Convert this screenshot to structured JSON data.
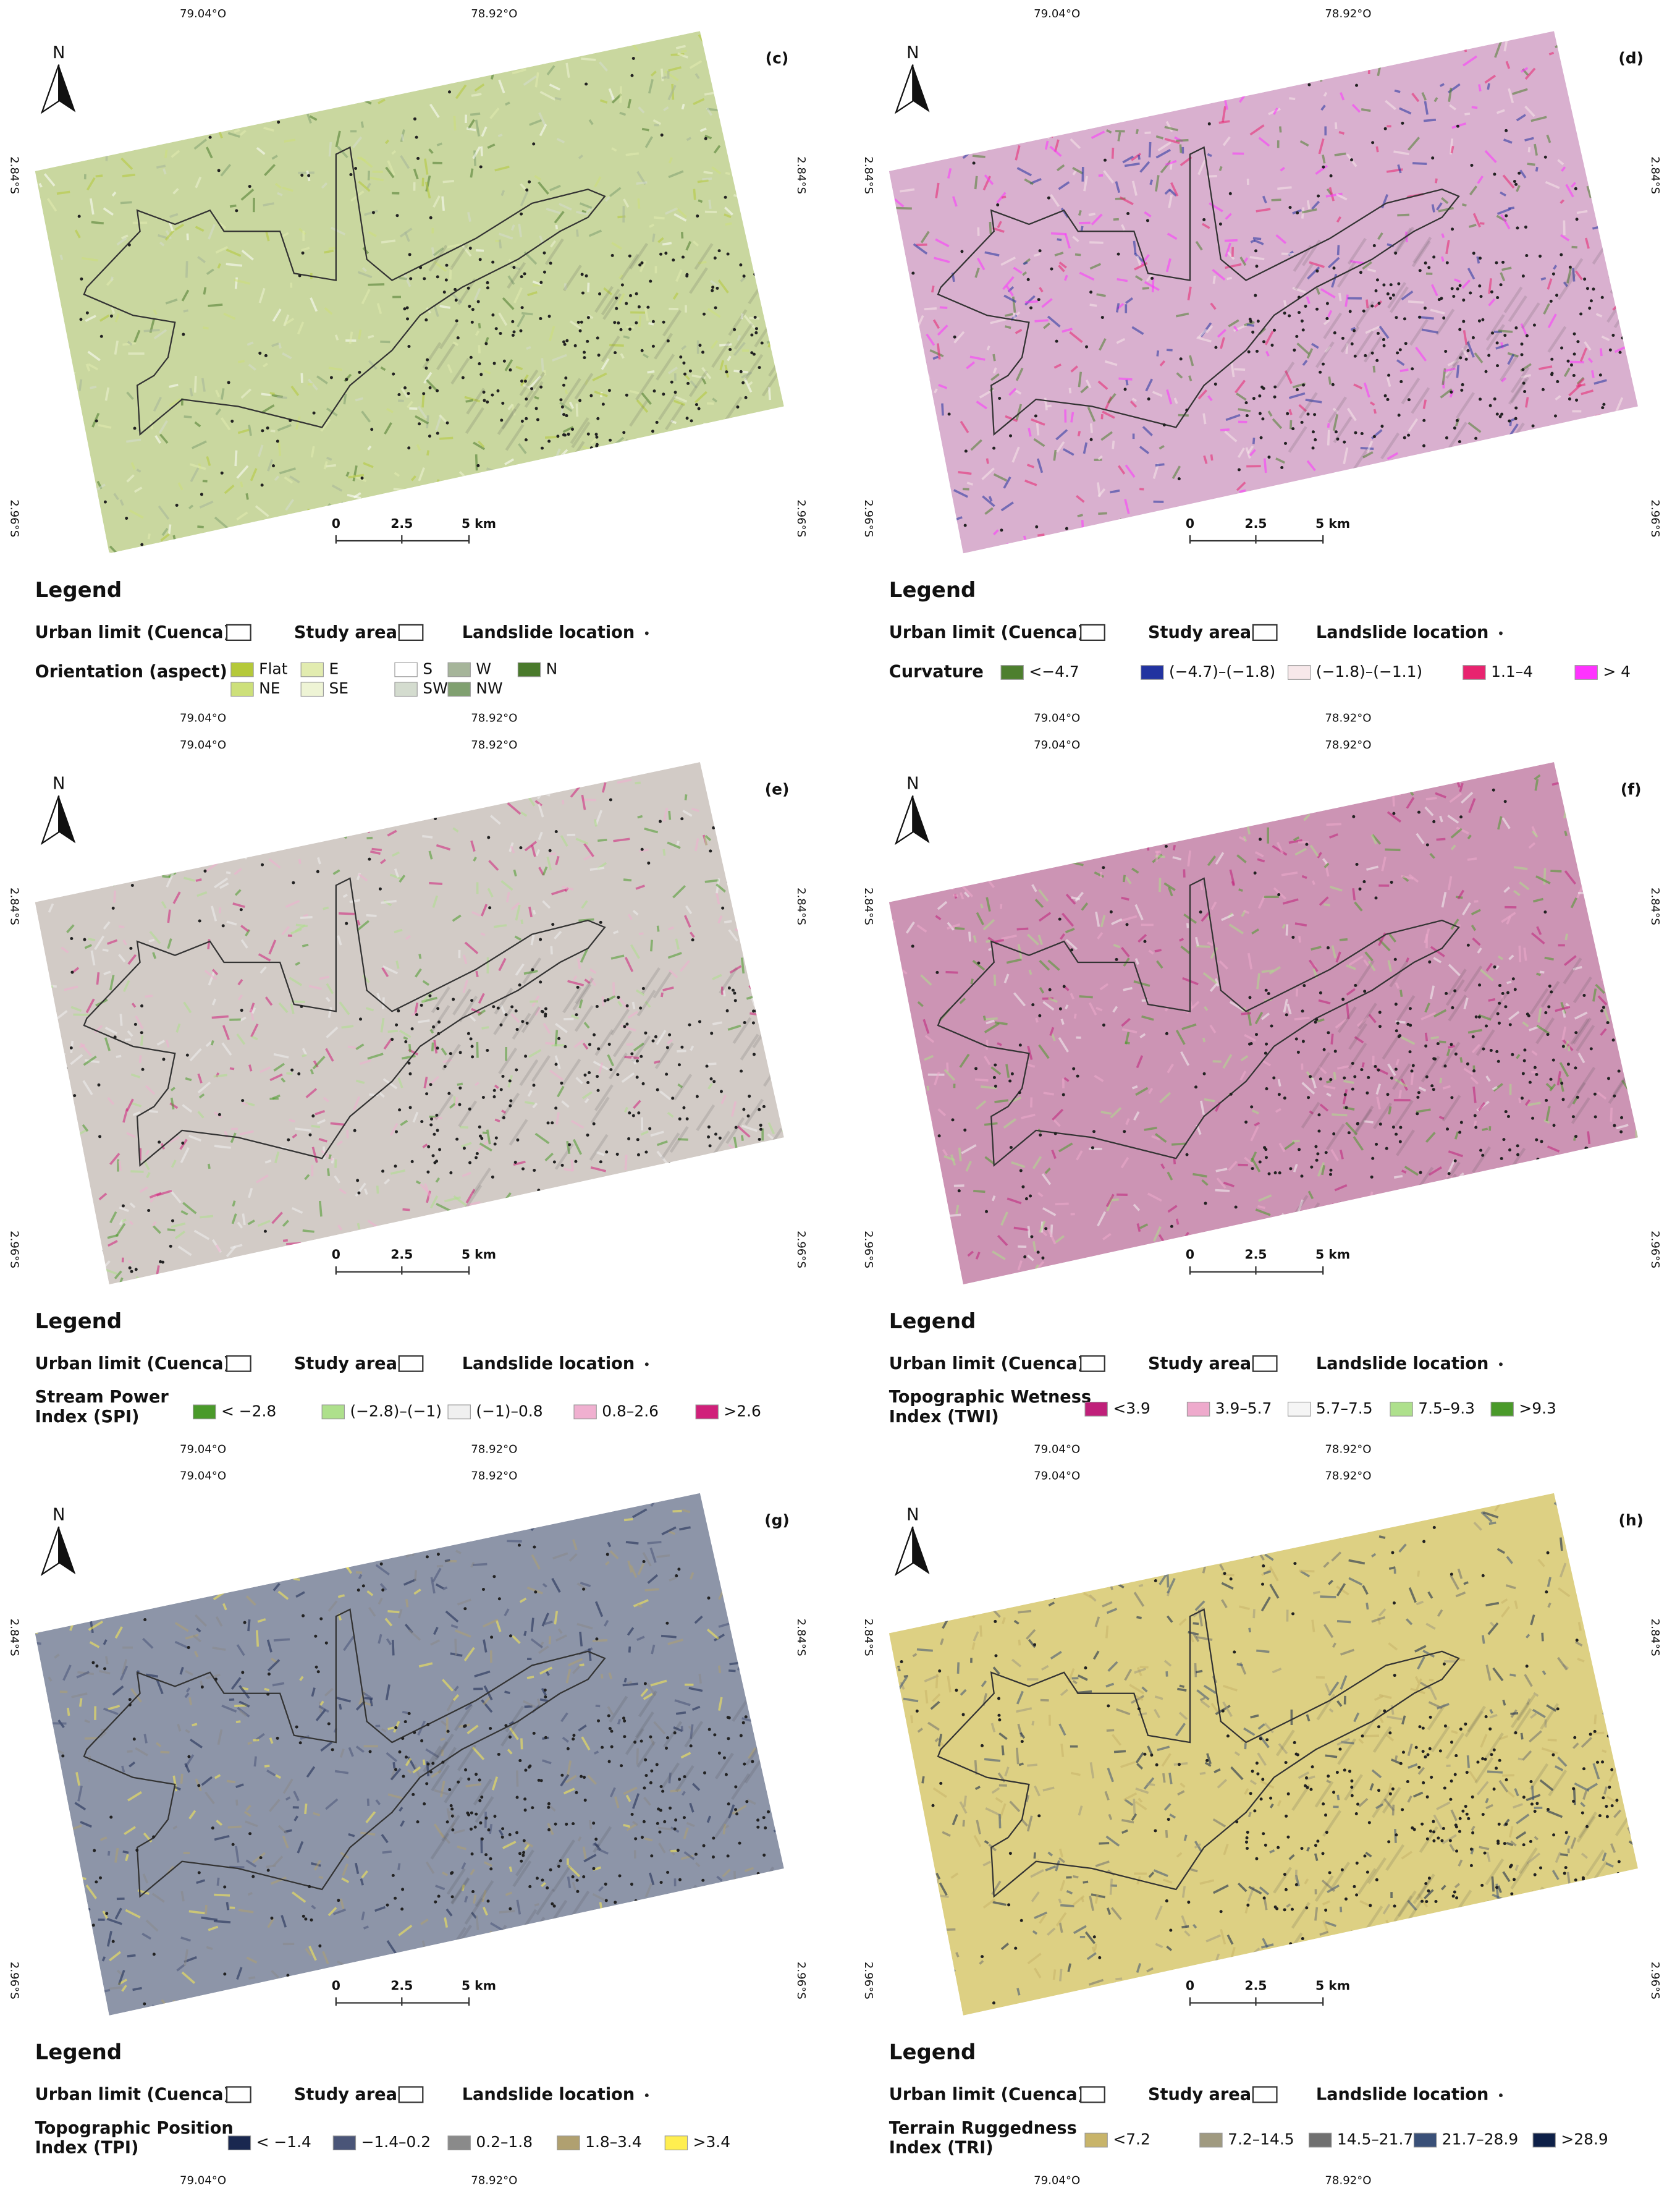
{
  "common": {
    "lon_left": "79.04°O",
    "lon_right": "78.92°O",
    "lat_top": "2.84°S",
    "lat_bottom": "2.96°S",
    "north": "N",
    "scale_0": "0",
    "scale_mid": "2.5",
    "scale_end": "5 km",
    "legend": "Legend",
    "urban_limit": "Urban limit (Cuenca)",
    "study_area": "Study area",
    "landslide": "Landslide location"
  },
  "panels": [
    {
      "label": "(c)",
      "map_color": "#c9d79f",
      "legend_title": [
        "Orientation (aspect)"
      ],
      "classes": [
        {
          "label": "Flat",
          "color": "#b5c93a"
        },
        {
          "label": "NE",
          "color": "#cde07a"
        },
        {
          "label": "E",
          "color": "#e2ecb0"
        },
        {
          "label": "SE",
          "color": "#eef4d5"
        },
        {
          "label": "S",
          "color": "#ffffff"
        },
        {
          "label": "SW",
          "color": "#d4dccf"
        },
        {
          "label": "W",
          "color": "#a6b59a"
        },
        {
          "label": "NW",
          "color": "#80a070"
        },
        {
          "label": "N",
          "color": "#4a7a2c"
        }
      ]
    },
    {
      "label": "(d)",
      "map_color": "#d9b0cf",
      "legend_title": [
        "Curvature"
      ],
      "classes": [
        {
          "label": "<−4.7",
          "color": "#4d7f2e"
        },
        {
          "label": "(−4.7)–(−1.8)",
          "color": "#2233a0"
        },
        {
          "label": "(−1.8)–(−1.1)",
          "color": "#f7e8ea"
        },
        {
          "label": "1.1–4",
          "color": "#e8236f"
        },
        {
          "label": "> 4",
          "color": "#ff33ff"
        }
      ]
    },
    {
      "label": "(e)",
      "map_color": "#d2cbc6",
      "legend_title": [
        "Stream Power",
        "Index (SPI)"
      ],
      "classes": [
        {
          "label": "< −2.8",
          "color": "#4a9a2a"
        },
        {
          "label": "(−2.8)–(−1)",
          "color": "#aee08c"
        },
        {
          "label": "(−1)–0.8",
          "color": "#f0f0f0"
        },
        {
          "label": "0.8–2.6",
          "color": "#f0b0d0"
        },
        {
          "label": ">2.6",
          "color": "#d0207a"
        }
      ]
    },
    {
      "label": "(f)",
      "map_color": "#cc94b4",
      "legend_title": [
        "Topographic Wetness",
        "Index (TWI)"
      ],
      "classes": [
        {
          "label": "<3.9",
          "color": "#c0207a"
        },
        {
          "label": "3.9–5.7",
          "color": "#eeaacc"
        },
        {
          "label": "5.7–7.5",
          "color": "#f5f5f5"
        },
        {
          "label": "7.5–9.3",
          "color": "#aee08c"
        },
        {
          "label": ">9.3",
          "color": "#4a9a2a"
        }
      ]
    },
    {
      "label": "(g)",
      "map_color": "#8d95a8",
      "legend_title": [
        "Topographic Position",
        "Index (TPI)"
      ],
      "classes": [
        {
          "label": "< −1.4",
          "color": "#1a2850"
        },
        {
          "label": "−1.4–0.2",
          "color": "#4a5578"
        },
        {
          "label": "0.2–1.8",
          "color": "#8a8a8a"
        },
        {
          "label": "1.8–3.4",
          "color": "#b0a070"
        },
        {
          "label": ">3.4",
          "color": "#ffee50"
        }
      ]
    },
    {
      "label": "(h)",
      "map_color": "#ddd083",
      "legend_title": [
        "Terrain Ruggedness",
        "Index (TRI)"
      ],
      "classes": [
        {
          "label": "<7.2",
          "color": "#c8b46a"
        },
        {
          "label": "7.2–14.5",
          "color": "#a09a80"
        },
        {
          "label": "14.5–21.7",
          "color": "#707070"
        },
        {
          "label": "21.7–28.9",
          "color": "#3a5078"
        },
        {
          "label": ">28.9",
          "color": "#0e2048"
        }
      ]
    }
  ]
}
